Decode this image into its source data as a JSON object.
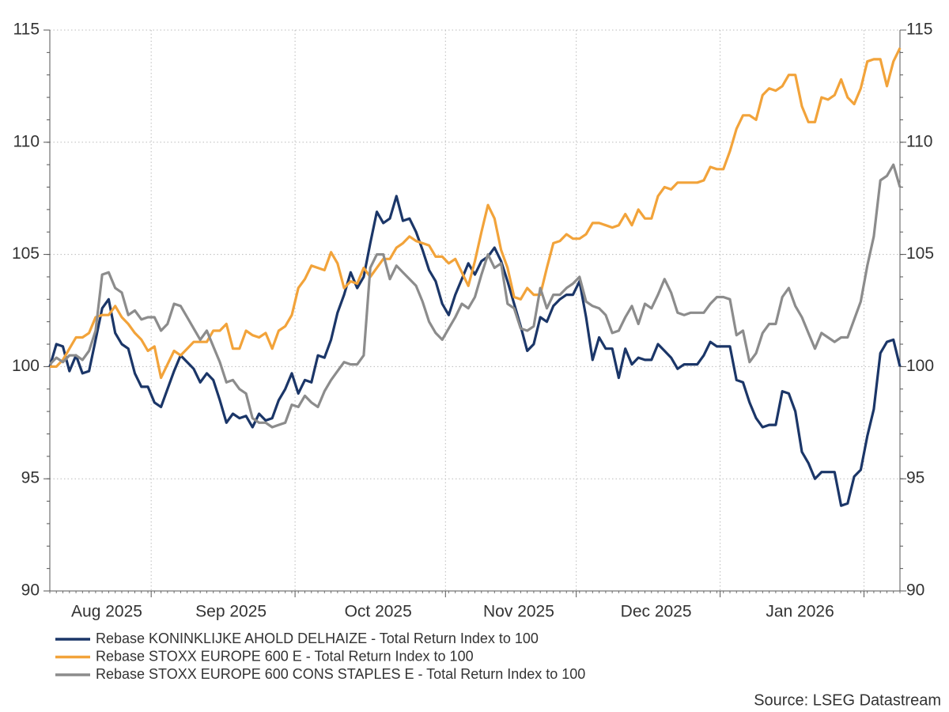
{
  "chart_data": {
    "type": "line",
    "categories": [
      "Aug 2025",
      "Aug 2025",
      "Aug 2025",
      "Aug 2025",
      "Aug 2025",
      "Aug 2025",
      "Aug 2025",
      "Aug 2025",
      "Aug 2025",
      "Aug 2025",
      "Aug 2025",
      "Aug 2025",
      "Aug 2025",
      "Aug 2025",
      "Aug 2025",
      "Aug 2025",
      "Sep 2025",
      "Sep 2025",
      "Sep 2025",
      "Sep 2025",
      "Sep 2025",
      "Sep 2025",
      "Sep 2025",
      "Sep 2025",
      "Sep 2025",
      "Sep 2025",
      "Sep 2025",
      "Sep 2025",
      "Sep 2025",
      "Sep 2025",
      "Sep 2025",
      "Sep 2025",
      "Sep 2025",
      "Sep 2025",
      "Sep 2025",
      "Sep 2025",
      "Sep 2025",
      "Sep 2025",
      "Oct 2025",
      "Oct 2025",
      "Oct 2025",
      "Oct 2025",
      "Oct 2025",
      "Oct 2025",
      "Oct 2025",
      "Oct 2025",
      "Oct 2025",
      "Oct 2025",
      "Oct 2025",
      "Oct 2025",
      "Oct 2025",
      "Oct 2025",
      "Oct 2025",
      "Oct 2025",
      "Oct 2025",
      "Oct 2025",
      "Oct 2025",
      "Oct 2025",
      "Oct 2025",
      "Oct 2025",
      "Oct 2025",
      "Nov 2025",
      "Nov 2025",
      "Nov 2025",
      "Nov 2025",
      "Nov 2025",
      "Nov 2025",
      "Nov 2025",
      "Nov 2025",
      "Nov 2025",
      "Nov 2025",
      "Nov 2025",
      "Nov 2025",
      "Nov 2025",
      "Nov 2025",
      "Nov 2025",
      "Nov 2025",
      "Nov 2025",
      "Nov 2025",
      "Nov 2025",
      "Nov 2025",
      "Dec 2025",
      "Dec 2025",
      "Dec 2025",
      "Dec 2025",
      "Dec 2025",
      "Dec 2025",
      "Dec 2025",
      "Dec 2025",
      "Dec 2025",
      "Dec 2025",
      "Dec 2025",
      "Dec 2025",
      "Dec 2025",
      "Dec 2025",
      "Dec 2025",
      "Dec 2025",
      "Dec 2025",
      "Dec 2025",
      "Dec 2025",
      "Dec 2025",
      "Dec 2025",
      "Dec 2025",
      "Jan 2026",
      "Jan 2026",
      "Jan 2026",
      "Jan 2026",
      "Jan 2026",
      "Jan 2026",
      "Jan 2026",
      "Jan 2026",
      "Jan 2026",
      "Jan 2026",
      "Jan 2026",
      "Jan 2026",
      "Jan 2026",
      "Jan 2026",
      "Jan 2026",
      "Jan 2026",
      "Jan 2026",
      "Jan 2026",
      "Jan 2026",
      "Jan 2026",
      "Jan 2026",
      "Jan 2026",
      null,
      null,
      null,
      null,
      null,
      null
    ],
    "series": [
      {
        "name": "Rebase KONINKLIJKE AHOLD DELHAIZE - Total Return Index to 100",
        "color": "#1b3668",
        "values": [
          100.0,
          101.0,
          100.9,
          99.8,
          100.5,
          99.7,
          99.8,
          101.2,
          102.6,
          103.0,
          101.5,
          101.0,
          100.8,
          99.7,
          99.1,
          99.1,
          98.4,
          98.2,
          99.0,
          99.8,
          100.5,
          100.2,
          99.9,
          99.3,
          99.7,
          99.4,
          98.5,
          97.5,
          97.9,
          97.7,
          97.8,
          97.3,
          97.9,
          97.6,
          97.7,
          98.5,
          99.0,
          99.7,
          98.8,
          99.4,
          99.3,
          100.5,
          100.4,
          101.2,
          102.4,
          103.2,
          104.2,
          103.5,
          104.0,
          105.5,
          106.9,
          106.4,
          106.6,
          107.6,
          106.5,
          106.6,
          106.0,
          105.2,
          104.3,
          103.8,
          102.8,
          102.3,
          103.2,
          103.9,
          104.6,
          104.1,
          104.7,
          104.9,
          105.3,
          104.7,
          103.8,
          102.8,
          101.8,
          100.7,
          101.0,
          102.2,
          102.0,
          102.7,
          103.0,
          103.2,
          103.2,
          103.8,
          102.2,
          100.3,
          101.3,
          100.8,
          100.8,
          99.5,
          100.8,
          100.1,
          100.4,
          100.3,
          100.3,
          101.0,
          100.7,
          100.4,
          99.9,
          100.1,
          100.1,
          100.1,
          100.5,
          101.1,
          100.9,
          100.9,
          100.9,
          99.4,
          99.3,
          98.4,
          97.7,
          97.3,
          97.4,
          97.4,
          98.9,
          98.8,
          98.0,
          96.2,
          95.7,
          95.0,
          95.3,
          95.3,
          95.3,
          93.8,
          93.9,
          95.1,
          95.4,
          96.9,
          98.1,
          100.6,
          101.1,
          101.2,
          100.0
        ]
      },
      {
        "name": "Rebase STOXX EUROPE 600 E - Total Return Index to 100",
        "color": "#f2a33a",
        "values": [
          100.0,
          100.0,
          100.3,
          100.8,
          101.3,
          101.3,
          101.5,
          102.2,
          102.3,
          102.3,
          102.7,
          102.2,
          101.9,
          101.5,
          101.2,
          100.7,
          100.9,
          99.5,
          100.1,
          100.7,
          100.5,
          100.8,
          101.1,
          101.1,
          101.1,
          101.6,
          101.6,
          101.9,
          100.8,
          100.8,
          101.6,
          101.4,
          101.3,
          101.5,
          100.8,
          101.6,
          101.8,
          102.3,
          103.5,
          103.9,
          104.5,
          104.4,
          104.3,
          105.1,
          104.6,
          103.5,
          103.8,
          103.7,
          104.4,
          104.0,
          104.4,
          104.8,
          104.8,
          105.3,
          105.5,
          105.8,
          105.6,
          105.5,
          105.4,
          104.9,
          104.9,
          104.6,
          104.8,
          104.2,
          103.6,
          104.7,
          106.0,
          107.2,
          106.6,
          105.2,
          104.4,
          103.1,
          103.0,
          103.5,
          103.2,
          103.2,
          104.4,
          105.5,
          105.6,
          105.9,
          105.7,
          105.7,
          105.9,
          106.4,
          106.4,
          106.3,
          106.2,
          106.3,
          106.8,
          106.3,
          107.0,
          106.6,
          106.6,
          107.6,
          108.0,
          107.9,
          108.2,
          108.2,
          108.2,
          108.2,
          108.3,
          108.9,
          108.8,
          108.8,
          109.6,
          110.6,
          111.2,
          111.2,
          111.0,
          112.1,
          112.4,
          112.3,
          112.5,
          113.0,
          113.0,
          111.6,
          110.9,
          110.9,
          112.0,
          111.9,
          112.1,
          112.8,
          112.0,
          111.7,
          112.4,
          113.6,
          113.7,
          113.7,
          112.5,
          113.6,
          114.2
        ]
      },
      {
        "name": "Rebase STOXX EUROPE 600 CONS STAPLES E - Total Return Index to 100",
        "color": "#8c8c8c",
        "values": [
          100.1,
          100.4,
          100.2,
          100.5,
          100.5,
          100.3,
          100.7,
          101.6,
          104.1,
          104.2,
          103.5,
          103.3,
          102.3,
          102.5,
          102.1,
          102.2,
          102.2,
          101.6,
          101.9,
          102.8,
          102.7,
          102.2,
          101.7,
          101.2,
          101.6,
          100.9,
          100.2,
          99.3,
          99.4,
          99.0,
          98.8,
          97.7,
          97.5,
          97.5,
          97.3,
          97.4,
          97.5,
          98.3,
          98.2,
          98.7,
          98.4,
          98.2,
          98.9,
          99.4,
          99.8,
          100.2,
          100.1,
          100.1,
          100.5,
          104.4,
          105.0,
          105.0,
          103.9,
          104.5,
          104.2,
          103.9,
          103.6,
          102.9,
          102.0,
          101.5,
          101.2,
          101.7,
          102.2,
          102.8,
          102.6,
          103.1,
          104.1,
          105.0,
          104.4,
          104.6,
          102.8,
          102.6,
          101.7,
          101.6,
          101.8,
          103.5,
          102.6,
          103.2,
          103.2,
          103.5,
          103.7,
          104.0,
          102.9,
          102.7,
          102.6,
          102.3,
          101.5,
          101.6,
          102.2,
          102.7,
          101.9,
          102.8,
          102.6,
          103.2,
          103.9,
          103.3,
          102.4,
          102.3,
          102.4,
          102.4,
          102.4,
          102.8,
          103.1,
          103.1,
          103.0,
          101.4,
          101.6,
          100.2,
          100.6,
          101.5,
          101.9,
          101.9,
          103.1,
          103.5,
          102.7,
          102.2,
          101.5,
          100.8,
          101.5,
          101.3,
          101.1,
          101.3,
          101.3,
          102.1,
          102.9,
          104.5,
          105.8,
          108.3,
          108.5,
          109.0,
          108.0
        ]
      }
    ],
    "ylim": [
      90,
      115
    ],
    "yticks": [
      90,
      95,
      100,
      105,
      110,
      115
    ],
    "y2lim": [
      90,
      115
    ],
    "y2ticks": [
      90,
      95,
      100,
      105,
      110,
      115
    ],
    "grid": true,
    "source": "Source: LSEG Datastream"
  }
}
